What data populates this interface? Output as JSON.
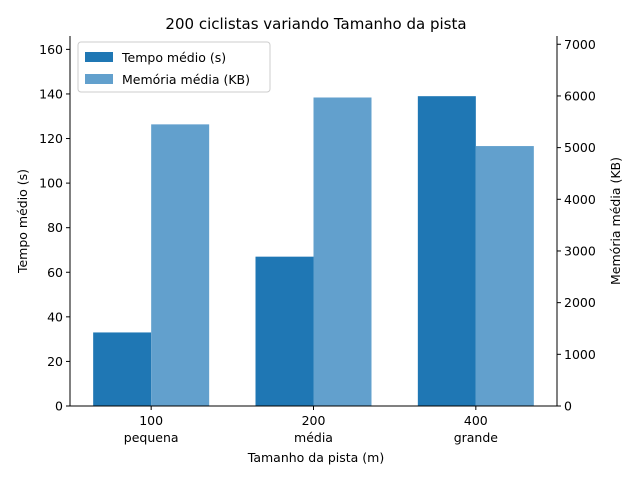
{
  "chart_data": {
    "type": "bar",
    "title": "200 ciclistas variando Tamanho da pista",
    "xlabel": "Tamanho da pista (m)",
    "ylabel": "Tempo médio (s)",
    "y2label": "Memória média (KB)",
    "categories": [
      {
        "value": "100",
        "size": "pequena"
      },
      {
        "value": "200",
        "size": "média"
      },
      {
        "value": "400",
        "size": "grande"
      }
    ],
    "series": [
      {
        "name": "Tempo médio (s)",
        "axis": "left",
        "color": "#1f77b4",
        "values": [
          33,
          67,
          139
        ]
      },
      {
        "name": "Memória média (KB)",
        "axis": "right",
        "color": "#62a0cd",
        "values": [
          5450,
          5970,
          5030
        ]
      }
    ],
    "ylim": [
      0,
      166
    ],
    "y2lim": [
      0,
      7160
    ],
    "yticks": [
      0,
      20,
      40,
      60,
      80,
      100,
      120,
      140,
      160
    ],
    "y2ticks": [
      0,
      1000,
      2000,
      3000,
      4000,
      5000,
      6000,
      7000
    ],
    "legend": "top-left",
    "grid": false
  }
}
